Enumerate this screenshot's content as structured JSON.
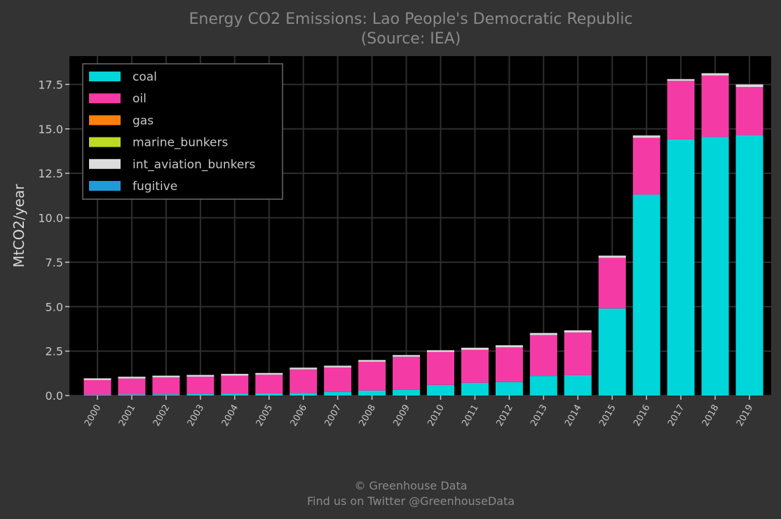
{
  "chart_data": {
    "type": "bar",
    "stacked": true,
    "title": "Energy CO2 Emissions: Lao People's Democratic Republic",
    "subtitle": "(Source: IEA)",
    "xlabel": "",
    "ylabel": "MtCO2/year",
    "ylim": [
      0,
      19
    ],
    "yticks": [
      0.0,
      2.5,
      5.0,
      7.5,
      10.0,
      12.5,
      15.0,
      17.5
    ],
    "ytick_labels": [
      "0.0",
      "2.5",
      "5.0",
      "7.5",
      "10.0",
      "12.5",
      "15.0",
      "17.5"
    ],
    "grid": true,
    "legend_position": "top-left",
    "categories": [
      "2000",
      "2001",
      "2002",
      "2003",
      "2004",
      "2005",
      "2006",
      "2007",
      "2008",
      "2009",
      "2010",
      "2011",
      "2012",
      "2013",
      "2014",
      "2015",
      "2016",
      "2017",
      "2018",
      "2019"
    ],
    "series": [
      {
        "name": "coal",
        "color": "#00d5d9",
        "values": [
          0.05,
          0.06,
          0.07,
          0.08,
          0.1,
          0.12,
          0.15,
          0.2,
          0.28,
          0.33,
          0.6,
          0.72,
          0.76,
          1.1,
          1.15,
          4.9,
          11.3,
          14.4,
          14.55,
          14.65
        ]
      },
      {
        "name": "oil",
        "color": "#f43ba5",
        "values": [
          0.82,
          0.9,
          0.95,
          0.98,
          1.02,
          1.05,
          1.32,
          1.38,
          1.62,
          1.85,
          1.85,
          1.85,
          1.95,
          2.3,
          2.4,
          2.85,
          3.2,
          3.3,
          3.45,
          2.7
        ]
      },
      {
        "name": "gas",
        "color": "#ff7f0e",
        "values": [
          0,
          0,
          0,
          0,
          0,
          0,
          0,
          0,
          0,
          0,
          0,
          0,
          0,
          0,
          0,
          0,
          0,
          0,
          0,
          0
        ]
      },
      {
        "name": "marine_bunkers",
        "color": "#bcdb22",
        "values": [
          0,
          0,
          0,
          0,
          0,
          0,
          0,
          0,
          0,
          0,
          0,
          0,
          0,
          0,
          0,
          0,
          0,
          0,
          0,
          0
        ]
      },
      {
        "name": "int_aviation_bunkers",
        "color": "#dcdcdc",
        "values": [
          0.1,
          0.1,
          0.1,
          0.1,
          0.1,
          0.1,
          0.1,
          0.1,
          0.1,
          0.1,
          0.1,
          0.12,
          0.12,
          0.12,
          0.12,
          0.12,
          0.13,
          0.1,
          0.13,
          0.15
        ]
      },
      {
        "name": "fugitive",
        "color": "#1f9bd8",
        "values": [
          0,
          0,
          0,
          0,
          0,
          0,
          0,
          0,
          0,
          0,
          0,
          0,
          0,
          0,
          0,
          0,
          0,
          0,
          0,
          0
        ]
      }
    ]
  },
  "footer": {
    "line1": "© Greenhouse Data",
    "line2": "Find us on Twitter @GreenhouseData"
  },
  "colors": {
    "background": "#333333",
    "plot_background": "#000000",
    "grid": "#2e2e2e"
  }
}
